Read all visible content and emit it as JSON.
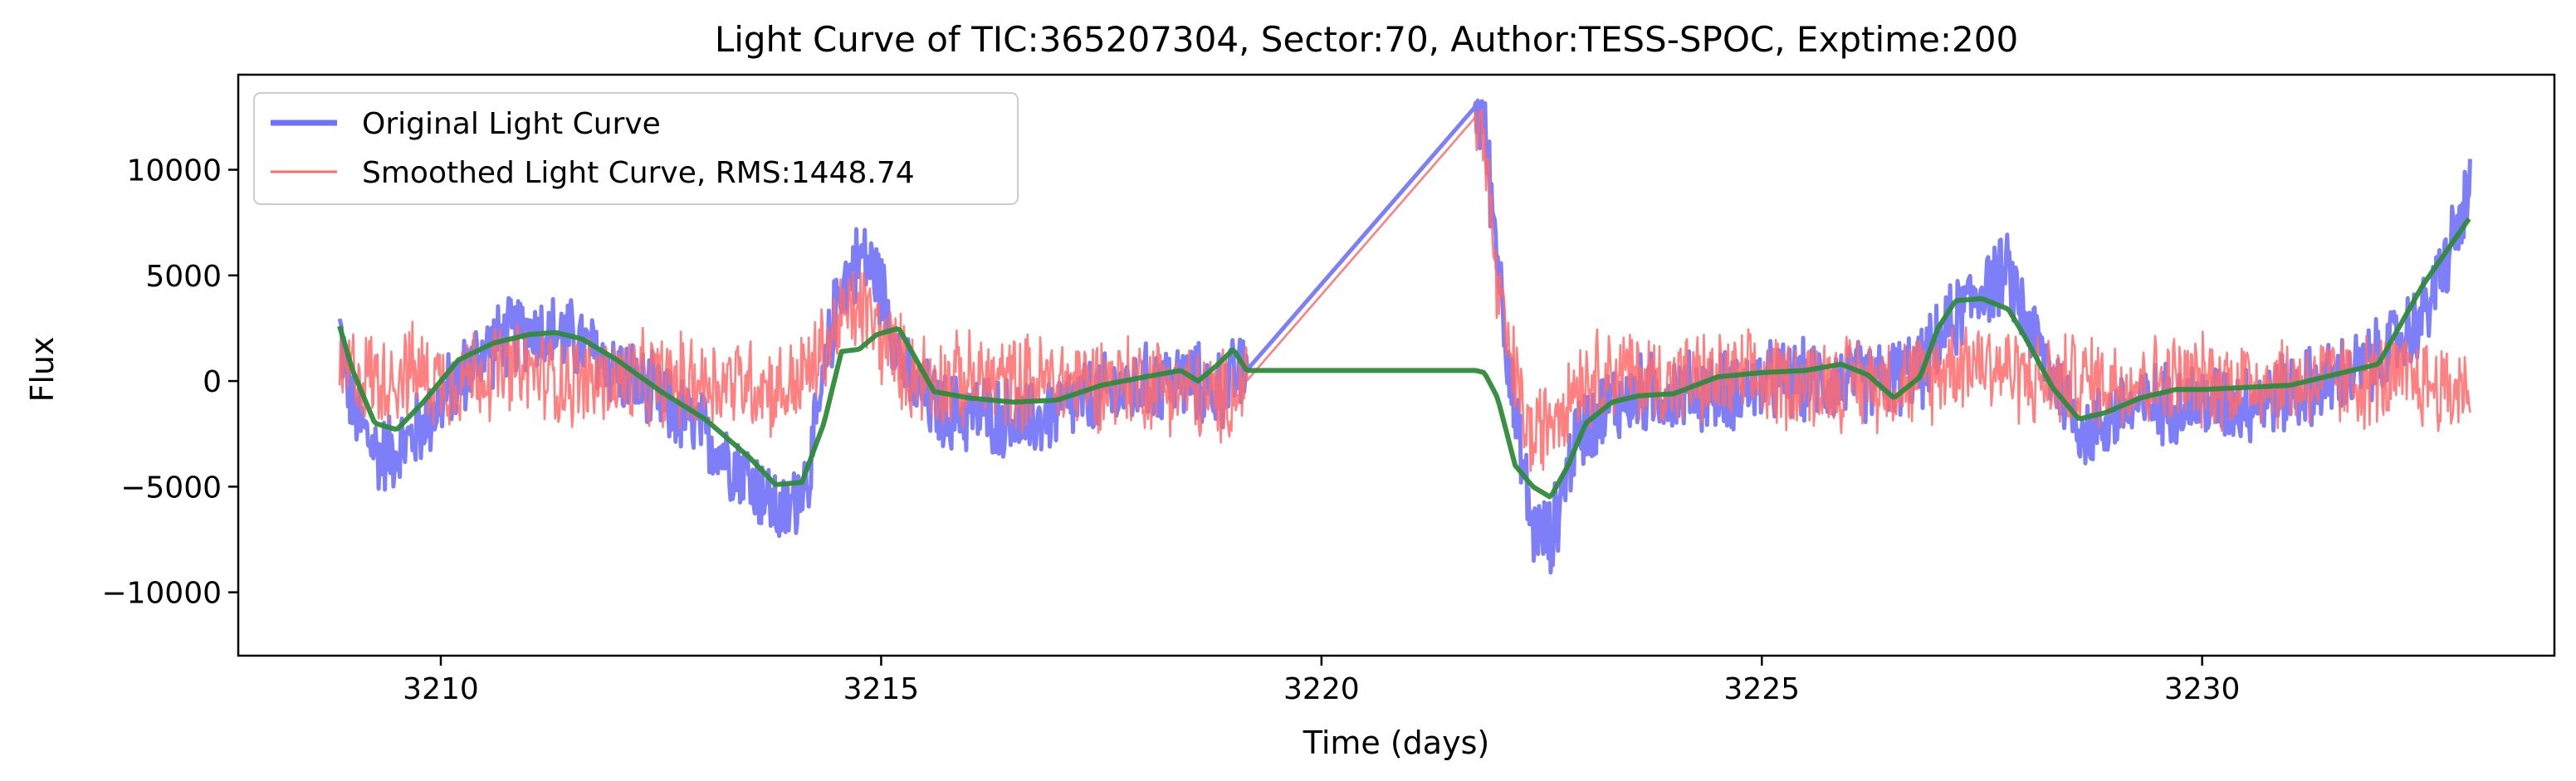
{
  "chart_data": {
    "type": "line",
    "title": "Light Curve of TIC:365207304, Sector:70, Author:TESS-SPOC, Exptime:200",
    "xlabel": "Time (days)",
    "ylabel": "Flux",
    "xlim": [
      3207.7,
      3234.0
    ],
    "ylim": [
      -13000,
      14500
    ],
    "xticks": [
      3210,
      3215,
      3220,
      3225,
      3230
    ],
    "yticks": [
      -10000,
      -5000,
      0,
      5000,
      10000
    ],
    "xtick_labels": [
      "3210",
      "3215",
      "3220",
      "3225",
      "3230"
    ],
    "ytick_labels": [
      "−10000",
      "−5000",
      "0",
      "5000",
      "10000"
    ],
    "legend_position": "upper left",
    "grid": false,
    "series": [
      {
        "name": "Original Light Curve",
        "color": "#7070f8",
        "style": "thick noisy line",
        "x": [
          3208.85,
          3209.0,
          3209.3,
          3209.6,
          3210.0,
          3210.5,
          3211.0,
          3211.5,
          3212.0,
          3212.5,
          3213.0,
          3213.5,
          3213.9,
          3214.2,
          3214.5,
          3214.55,
          3214.8,
          3215.0,
          3215.3,
          3215.7,
          3216.2,
          3216.7,
          3217.2,
          3217.7,
          3218.2,
          3218.5,
          3218.8,
          3219.15,
          3221.75,
          3221.85,
          3222.0,
          3222.2,
          3222.4,
          3222.6,
          3222.9,
          3223.3,
          3223.8,
          3224.5,
          3225.2,
          3225.8,
          3226.3,
          3226.8,
          3227.2,
          3227.5,
          3227.8,
          3228.1,
          3228.4,
          3228.7,
          3229.0,
          3229.5,
          3230.0,
          3230.5,
          3231.0,
          3231.5,
          3232.0,
          3232.5,
          3232.8,
          3233.05
        ],
        "y": [
          2500,
          -1500,
          -3500,
          -3000,
          -1000,
          1500,
          2500,
          2000,
          500,
          -1000,
          -2500,
          -4500,
          -6500,
          -4000,
          4000,
          4500,
          6000,
          4500,
          0,
          -1500,
          -1500,
          -2000,
          -1000,
          -500,
          0,
          0,
          -500,
          500,
          13000,
          12000,
          6000,
          -2000,
          -7000,
          -7500,
          -2500,
          -1000,
          -500,
          -500,
          0,
          0,
          0,
          500,
          3000,
          4500,
          5000,
          2000,
          -500,
          -2500,
          -1500,
          -1000,
          -1000,
          -1000,
          -500,
          0,
          1000,
          3000,
          6000,
          9000
        ]
      },
      {
        "name": "Smoothed Light Curve, RMS:1448.74",
        "color": "#ff6a6a",
        "style": "thin noisy line",
        "x": [
          3208.85,
          3209.0,
          3209.3,
          3209.6,
          3210.0,
          3210.5,
          3211.0,
          3211.5,
          3212.0,
          3212.5,
          3213.0,
          3213.5,
          3213.9,
          3214.2,
          3214.5,
          3214.55,
          3214.8,
          3215.0,
          3215.3,
          3215.7,
          3216.2,
          3216.7,
          3217.2,
          3217.7,
          3218.2,
          3218.5,
          3218.8,
          3219.15,
          3221.75,
          3221.85,
          3222.0,
          3222.2,
          3222.4,
          3222.6,
          3222.9,
          3223.3,
          3223.8,
          3224.5,
          3225.2,
          3225.8,
          3226.3,
          3226.8,
          3227.2,
          3227.5,
          3227.8,
          3228.1,
          3228.4,
          3228.7,
          3229.0,
          3229.5,
          3230.0,
          3230.5,
          3231.0,
          3231.5,
          3232.0,
          3232.5,
          3232.8,
          3233.05
        ],
        "y": [
          0,
          500,
          0,
          500,
          0,
          500,
          500,
          0,
          0,
          0,
          0,
          0,
          -500,
          500,
          2500,
          3000,
          3500,
          2000,
          500,
          0,
          0,
          0,
          0,
          0,
          0,
          -500,
          -1000,
          0,
          12500,
          11500,
          4000,
          0,
          -3000,
          -1500,
          0,
          500,
          0,
          0,
          0,
          0,
          0,
          0,
          1000,
          1000,
          500,
          0,
          0,
          0,
          0,
          0,
          0,
          0,
          0,
          0,
          0,
          0,
          -500,
          0
        ]
      },
      {
        "name": "",
        "color": "#2e8b3a",
        "style": "trend",
        "x": [
          3208.85,
          3209.0,
          3209.25,
          3209.5,
          3209.8,
          3210.2,
          3210.6,
          3211.0,
          3211.3,
          3211.6,
          3212.0,
          3212.5,
          3213.0,
          3213.5,
          3213.8,
          3214.1,
          3214.35,
          3214.55,
          3214.75,
          3214.95,
          3215.2,
          3215.4,
          3215.6,
          3216.0,
          3216.5,
          3217.0,
          3217.5,
          3218.0,
          3218.4,
          3218.6,
          3218.8,
          3219.0,
          3219.15,
          3221.75,
          3221.85,
          3222.0,
          3222.2,
          3222.4,
          3222.6,
          3222.8,
          3223.0,
          3223.3,
          3223.6,
          3224.0,
          3224.5,
          3225.0,
          3225.5,
          3225.9,
          3226.2,
          3226.5,
          3226.8,
          3227.0,
          3227.2,
          3227.5,
          3227.8,
          3228.0,
          3228.3,
          3228.6,
          3228.9,
          3229.3,
          3229.7,
          3230.0,
          3230.5,
          3231.0,
          3231.5,
          3232.0,
          3232.5,
          3233.05
        ],
        "y": [
          2600,
          500,
          -2000,
          -2300,
          -1000,
          1000,
          1800,
          2200,
          2300,
          2000,
          1000,
          -500,
          -1800,
          -3600,
          -4900,
          -4800,
          -2000,
          1400,
          1500,
          2200,
          2500,
          1000,
          -500,
          -800,
          -1000,
          -900,
          -200,
          200,
          500,
          0,
          700,
          1500,
          500,
          500,
          400,
          -800,
          -4000,
          -5000,
          -5500,
          -4000,
          -2000,
          -1000,
          -700,
          -600,
          200,
          400,
          500,
          800,
          300,
          -800,
          200,
          2500,
          3800,
          3900,
          3400,
          2000,
          -300,
          -1800,
          -1500,
          -800,
          -400,
          -400,
          -300,
          -200,
          300,
          800,
          4500,
          7800
        ]
      }
    ]
  }
}
